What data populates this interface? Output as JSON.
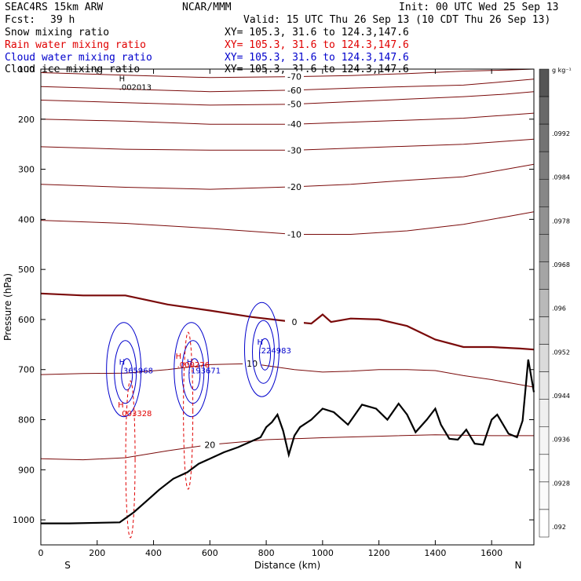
{
  "header": {
    "model": "SEAC4RS 15km ARW",
    "org": "NCAR/MMM",
    "init": "Init: 00 UTC Wed 25 Sep 13",
    "fcst_label": "Fcst:",
    "fcst_value": "39 h",
    "valid": "Valid: 15 UTC Thu 26 Sep 13 (10 CDT Thu 26 Sep 13)"
  },
  "fields": [
    {
      "name": "Snow mixing ratio",
      "xy": "XY= 105.3, 31.6 to 124.3,147.6",
      "color": "#000000"
    },
    {
      "name": "Rain water mixing ratio",
      "xy": "XY= 105.3, 31.6 to 124.3,147.6",
      "color": "#e00000"
    },
    {
      "name": "Cloud water mixing ratio",
      "xy": "XY= 105.3, 31.6 to 124.3,147.6",
      "color": "#0000cc"
    },
    {
      "name": "Cloud ice mixing ratio",
      "xy": "XY= 105.3, 31.6 to 124.3,147.6",
      "color": "#000000"
    }
  ],
  "chart_data": {
    "type": "line",
    "xlabel": "Distance (km)",
    "ylabel": "Pressure (hPa)",
    "xlim": [
      0,
      1750
    ],
    "ylim": [
      1050,
      100
    ],
    "x_ticks": [
      0,
      200,
      400,
      600,
      800,
      1000,
      1200,
      1400,
      1600
    ],
    "y_ticks": [
      100,
      200,
      300,
      400,
      500,
      600,
      700,
      800,
      900,
      1000
    ],
    "endpoints": {
      "left": "S",
      "right": "N"
    },
    "colorbar": {
      "unit": "g kg⁻¹",
      "tick_labels": [
        ".0992",
        ".0984",
        ".0978",
        ".0968",
        ".096",
        ".0952",
        ".0944",
        ".0936",
        ".0928",
        ".092"
      ],
      "fill_levels": [
        0.85,
        0.75,
        0.7,
        0.65,
        0.6,
        0.55,
        0.5,
        0.45,
        0.35,
        0.25,
        0.18,
        0.12,
        0.08,
        0.05,
        0.03,
        0.02,
        0.0
      ]
    },
    "terrain": {
      "color": "#000000",
      "x": [
        0,
        100,
        280,
        330,
        380,
        420,
        470,
        520,
        560,
        600,
        650,
        700,
        780,
        800,
        820,
        840,
        860,
        880,
        900,
        920,
        960,
        1000,
        1040,
        1090,
        1140,
        1190,
        1230,
        1270,
        1300,
        1330,
        1370,
        1400,
        1420,
        1450,
        1480,
        1510,
        1540,
        1570,
        1600,
        1620,
        1660,
        1690,
        1710,
        1730,
        1750
      ],
      "p": [
        1007,
        1007,
        1005,
        985,
        960,
        940,
        918,
        905,
        888,
        878,
        865,
        855,
        835,
        815,
        805,
        790,
        822,
        870,
        832,
        815,
        800,
        778,
        785,
        810,
        770,
        778,
        800,
        768,
        790,
        825,
        800,
        778,
        810,
        838,
        840,
        820,
        848,
        850,
        800,
        790,
        828,
        835,
        802,
        680,
        745
      ]
    },
    "temperature_contours": [
      {
        "label": "-70",
        "x": [
          0,
          300,
          600,
          900,
          1100,
          1300,
          1500,
          1650,
          1750
        ],
        "p": [
          107,
          112,
          117,
          115,
          113,
          109,
          104,
          102,
          100
        ]
      },
      {
        "label": "-60",
        "x": [
          0,
          300,
          600,
          900,
          1100,
          1300,
          1500,
          1650,
          1750
        ],
        "p": [
          135,
          140,
          145,
          142,
          138,
          135,
          132,
          125,
          120
        ]
      },
      {
        "label": "-50",
        "x": [
          0,
          300,
          600,
          900,
          1100,
          1300,
          1500,
          1650,
          1750
        ],
        "p": [
          162,
          167,
          172,
          170,
          165,
          160,
          155,
          150,
          145
        ]
      },
      {
        "label": "-40",
        "x": [
          0,
          300,
          600,
          900,
          1100,
          1300,
          1500,
          1650,
          1750
        ],
        "p": [
          200,
          204,
          210,
          210,
          206,
          202,
          198,
          192,
          188
        ]
      },
      {
        "label": "-30",
        "x": [
          0,
          300,
          600,
          900,
          1100,
          1300,
          1500,
          1650,
          1750
        ],
        "p": [
          255,
          260,
          262,
          262,
          258,
          254,
          250,
          244,
          240
        ]
      },
      {
        "label": "-20",
        "x": [
          0,
          300,
          600,
          900,
          1100,
          1300,
          1500,
          1650,
          1750
        ],
        "p": [
          330,
          336,
          340,
          335,
          330,
          322,
          315,
          300,
          290
        ]
      },
      {
        "label": "-10",
        "x": [
          0,
          300,
          600,
          900,
          1100,
          1300,
          1500,
          1650,
          1750
        ],
        "p": [
          402,
          408,
          418,
          430,
          430,
          423,
          410,
          395,
          385
        ]
      },
      {
        "label": "0",
        "x": [
          0,
          150,
          300,
          450,
          600,
          750,
          900,
          960,
          1000,
          1030,
          1100,
          1200,
          1300,
          1400,
          1500,
          1600,
          1700,
          1750
        ],
        "p": [
          548,
          552,
          552,
          570,
          582,
          595,
          605,
          608,
          590,
          605,
          598,
          600,
          613,
          640,
          655,
          655,
          658,
          660
        ]
      },
      {
        "label": "10",
        "x": [
          0,
          150,
          300,
          450,
          600,
          750,
          900,
          1000,
          1100,
          1200,
          1300,
          1400,
          1500,
          1600,
          1700,
          1750
        ],
        "p": [
          710,
          708,
          707,
          700,
          690,
          688,
          700,
          705,
          703,
          700,
          700,
          702,
          712,
          720,
          730,
          735
        ]
      },
      {
        "label": "20",
        "x": [
          0,
          150,
          300,
          450,
          600,
          700,
          800,
          900,
          1000,
          1200,
          1400,
          1600,
          1750
        ],
        "p": [
          878,
          880,
          876,
          862,
          850,
          845,
          840,
          838,
          836,
          833,
          830,
          832,
          832
        ]
      }
    ],
    "cloud_water_maxima": [
      {
        "label": ".365968",
        "x": 300,
        "p": 700
      },
      {
        "label": ".193671",
        "x": 540,
        "p": 700
      },
      {
        "label": ".224983",
        "x": 790,
        "p": 660
      }
    ],
    "rain_maxima": [
      {
        "label": ".003328",
        "x": 290,
        "p": 785
      },
      {
        "label": ".000276",
        "x": 495,
        "p": 688
      }
    ],
    "snow_maxima": [
      {
        "label": ".002013",
        "x": 300,
        "p": 137
      }
    ]
  }
}
